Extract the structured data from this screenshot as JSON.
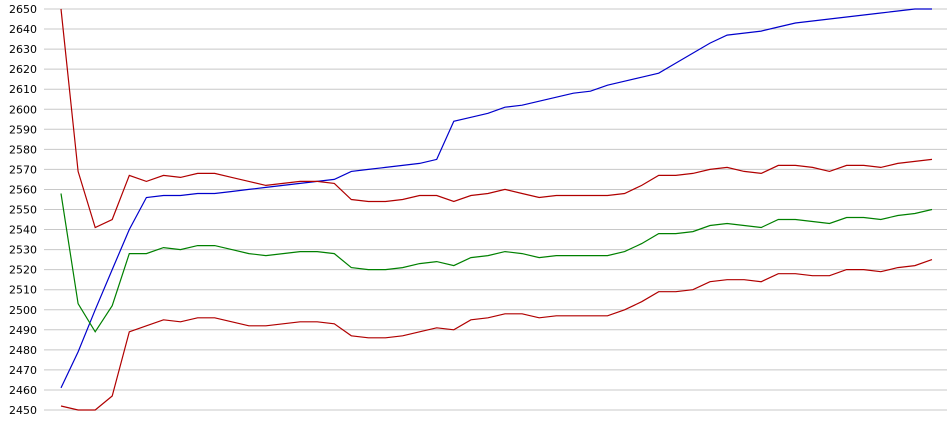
{
  "chart_data": {
    "type": "line",
    "title": "",
    "xlabel": "",
    "ylabel": "",
    "ylim": [
      2450,
      2650
    ],
    "yticks": [
      2450,
      2460,
      2470,
      2480,
      2490,
      2500,
      2510,
      2520,
      2530,
      2540,
      2550,
      2560,
      2570,
      2580,
      2590,
      2600,
      2610,
      2620,
      2630,
      2640,
      2650
    ],
    "grid": true,
    "legend": "none",
    "x": [
      0,
      1,
      2,
      3,
      4,
      5,
      6,
      7,
      8,
      9,
      10,
      11,
      12,
      13,
      14,
      15,
      16,
      17,
      18,
      19,
      20,
      21,
      22,
      23,
      24,
      25,
      26,
      27,
      28,
      29,
      30,
      31,
      32,
      33,
      34,
      35,
      36,
      37,
      38,
      39,
      40,
      41,
      42,
      43,
      44,
      45,
      46,
      47,
      48,
      49,
      50,
      51
    ],
    "series": [
      {
        "color": "#0000cc",
        "values": [
          2461,
          2479,
          2500,
          2520,
          2540,
          2556,
          2557,
          2557,
          2558,
          2558,
          2559,
          2560,
          2561,
          2562,
          2563,
          2564,
          2565,
          2569,
          2570,
          2571,
          2572,
          2573,
          2575,
          2594,
          2596,
          2598,
          2601,
          2602,
          2604,
          2606,
          2608,
          2609,
          2612,
          2614,
          2616,
          2618,
          2623,
          2628,
          2633,
          2637,
          2638,
          2639,
          2641,
          2643,
          2644,
          2645,
          2646,
          2647,
          2648,
          2649,
          2650,
          2650
        ]
      },
      {
        "color": "#b00000",
        "values": [
          2650,
          2569,
          2541,
          2545,
          2567,
          2564,
          2567,
          2566,
          2568,
          2568,
          2566,
          2564,
          2562,
          2563,
          2564,
          2564,
          2563,
          2555,
          2554,
          2554,
          2555,
          2557,
          2557,
          2554,
          2557,
          2558,
          2560,
          2558,
          2556,
          2557,
          2557,
          2557,
          2557,
          2558,
          2562,
          2567,
          2567,
          2568,
          2570,
          2571,
          2569,
          2568,
          2572,
          2572,
          2571,
          2569,
          2572,
          2572,
          2571,
          2573,
          2574,
          2575
        ]
      },
      {
        "color": "#008000",
        "values": [
          2558,
          2503,
          2489,
          2502,
          2528,
          2528,
          2531,
          2530,
          2532,
          2532,
          2530,
          2528,
          2527,
          2528,
          2529,
          2529,
          2528,
          2521,
          2520,
          2520,
          2521,
          2523,
          2524,
          2522,
          2526,
          2527,
          2529,
          2528,
          2526,
          2527,
          2527,
          2527,
          2527,
          2529,
          2533,
          2538,
          2538,
          2539,
          2542,
          2543,
          2542,
          2541,
          2545,
          2545,
          2544,
          2543,
          2546,
          2546,
          2545,
          2547,
          2548,
          2550
        ]
      },
      {
        "color": "#b00000",
        "values": [
          2452,
          2450,
          2450,
          2457,
          2489,
          2492,
          2495,
          2494,
          2496,
          2496,
          2494,
          2492,
          2492,
          2493,
          2494,
          2494,
          2493,
          2487,
          2486,
          2486,
          2487,
          2489,
          2491,
          2490,
          2495,
          2496,
          2498,
          2498,
          2496,
          2497,
          2497,
          2497,
          2497,
          2500,
          2504,
          2509,
          2509,
          2510,
          2514,
          2515,
          2515,
          2514,
          2518,
          2518,
          2517,
          2517,
          2520,
          2520,
          2519,
          2521,
          2522,
          2525
        ]
      }
    ]
  }
}
